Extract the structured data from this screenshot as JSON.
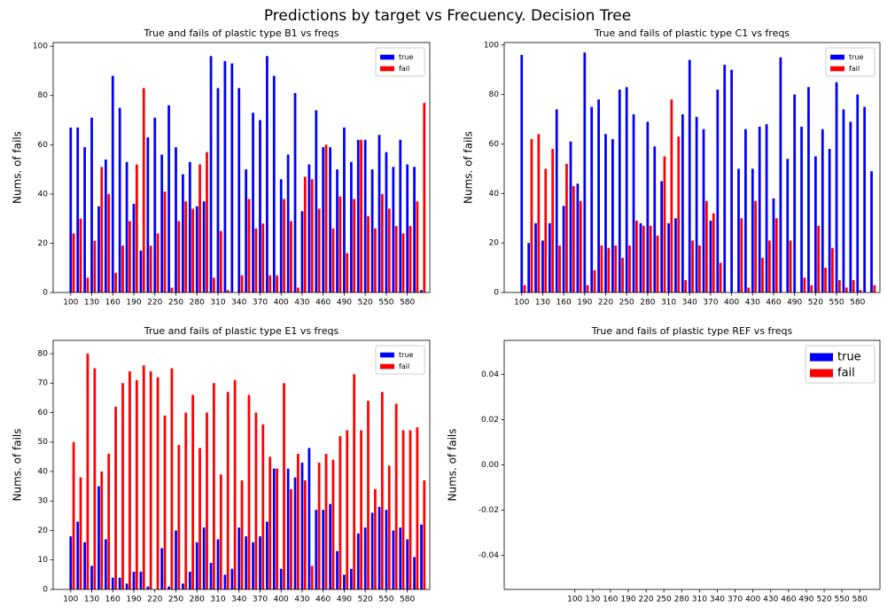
{
  "figure_title": "Predictions by target vs Frecuency. Decision Tree",
  "chart_data": [
    {
      "type": "bar",
      "title": "True and fails of plastic type B1 vs freqs",
      "ylabel": "Nums. of fails",
      "legend": "upper right",
      "x": [
        100,
        110,
        120,
        130,
        140,
        150,
        160,
        170,
        180,
        190,
        200,
        210,
        220,
        230,
        240,
        250,
        260,
        270,
        280,
        290,
        300,
        310,
        320,
        330,
        340,
        350,
        360,
        370,
        380,
        390,
        400,
        410,
        420,
        430,
        440,
        450,
        460,
        470,
        480,
        490,
        500,
        510,
        520,
        530,
        540,
        550,
        560,
        570,
        580,
        590,
        600
      ],
      "series": [
        {
          "name": "true",
          "color": "#0000ff",
          "values": [
            67,
            67,
            59,
            71,
            35,
            54,
            88,
            75,
            53,
            36,
            17,
            63,
            71,
            56,
            76,
            59,
            48,
            53,
            35,
            37,
            96,
            83,
            94,
            93,
            83,
            50,
            73,
            70,
            96,
            88,
            46,
            56,
            81,
            33,
            52,
            74,
            59,
            59,
            50,
            67,
            53,
            62,
            62,
            50,
            64,
            57,
            51,
            62,
            52,
            51,
            1
          ]
        },
        {
          "name": "fail",
          "color": "#ff0000",
          "values": [
            24,
            30,
            6,
            21,
            51,
            40,
            8,
            19,
            29,
            52,
            83,
            19,
            24,
            41,
            2,
            29,
            37,
            34,
            52,
            57,
            6,
            25,
            1,
            0,
            7,
            38,
            26,
            28,
            7,
            7,
            38,
            29,
            2,
            47,
            46,
            34,
            60,
            26,
            39,
            16,
            38,
            62,
            31,
            26,
            40,
            34,
            27,
            24,
            27,
            37,
            77
          ]
        }
      ],
      "xlim": [
        75,
        612
      ],
      "ylim": [
        0,
        101.5
      ],
      "xticks": [
        100,
        130,
        160,
        190,
        220,
        250,
        280,
        310,
        340,
        370,
        400,
        430,
        460,
        490,
        520,
        550,
        580
      ],
      "yticks": [
        0,
        20,
        40,
        60,
        80,
        100
      ]
    },
    {
      "type": "bar",
      "title": "True and fails of plastic type C1 vs freqs",
      "ylabel": "Nums. of fails",
      "legend": "upper right",
      "x": [
        100,
        110,
        120,
        130,
        140,
        150,
        160,
        170,
        180,
        190,
        200,
        210,
        220,
        230,
        240,
        250,
        260,
        270,
        280,
        290,
        300,
        310,
        320,
        330,
        340,
        350,
        360,
        370,
        380,
        390,
        400,
        410,
        420,
        430,
        440,
        450,
        460,
        470,
        480,
        490,
        500,
        510,
        520,
        530,
        540,
        550,
        560,
        570,
        580,
        590,
        600
      ],
      "series": [
        {
          "name": "true",
          "color": "#0000ff",
          "values": [
            96,
            20,
            28,
            21,
            28,
            74,
            35,
            61,
            44,
            97,
            75,
            78,
            64,
            62,
            82,
            83,
            72,
            28,
            69,
            59,
            45,
            28,
            30,
            72,
            94,
            71,
            66,
            29,
            82,
            92,
            90,
            50,
            66,
            50,
            67,
            68,
            38,
            95,
            54,
            80,
            67,
            83,
            55,
            66,
            58,
            85,
            74,
            69,
            80,
            75,
            49
          ]
        },
        {
          "name": "fail",
          "color": "#ff0000",
          "values": [
            3,
            62,
            64,
            50,
            58,
            19,
            52,
            43,
            37,
            3,
            9,
            19,
            18,
            19,
            14,
            19,
            29,
            27,
            27,
            23,
            55,
            78,
            63,
            5,
            21,
            19,
            37,
            32,
            12,
            0,
            0,
            30,
            2,
            37,
            14,
            21,
            30,
            0,
            21,
            0,
            6,
            3,
            27,
            10,
            18,
            5,
            2,
            5,
            1,
            0,
            3
          ]
        }
      ],
      "xlim": [
        75,
        612
      ],
      "ylim": [
        0,
        101
      ],
      "xticks": [
        100,
        130,
        160,
        190,
        220,
        250,
        280,
        310,
        340,
        370,
        400,
        430,
        460,
        490,
        520,
        550,
        580
      ],
      "yticks": [
        0,
        20,
        40,
        60,
        80,
        100
      ]
    },
    {
      "type": "bar",
      "title": "True and fails of plastic type E1 vs freqs",
      "ylabel": "Nums. of fails",
      "legend": "upper right",
      "x": [
        100,
        110,
        120,
        130,
        140,
        150,
        160,
        170,
        180,
        190,
        200,
        210,
        220,
        230,
        240,
        250,
        260,
        270,
        280,
        290,
        300,
        310,
        320,
        330,
        340,
        350,
        360,
        370,
        380,
        390,
        400,
        410,
        420,
        430,
        440,
        450,
        460,
        470,
        480,
        490,
        500,
        510,
        520,
        530,
        540,
        550,
        560,
        570,
        580,
        590,
        600
      ],
      "series": [
        {
          "name": "true",
          "color": "#0000ff",
          "values": [
            18,
            23,
            16,
            8,
            35,
            17,
            4,
            4,
            2,
            6,
            6,
            1,
            0,
            14,
            1,
            20,
            2,
            6,
            16,
            21,
            9,
            17,
            5,
            7,
            21,
            18,
            16,
            18,
            23,
            41,
            7,
            41,
            38,
            43,
            48,
            27,
            27,
            29,
            13,
            5,
            7,
            19,
            21,
            26,
            28,
            27,
            20,
            21,
            17,
            11,
            22
          ]
        },
        {
          "name": "fail",
          "color": "#ff0000",
          "values": [
            50,
            38,
            80,
            75,
            40,
            46,
            62,
            70,
            74,
            71,
            76,
            74,
            72,
            59,
            75,
            49,
            60,
            66,
            48,
            60,
            70,
            39,
            67,
            71,
            37,
            66,
            60,
            56,
            45,
            41,
            70,
            34,
            46,
            37,
            8,
            43,
            46,
            44,
            52,
            54,
            73,
            54,
            64,
            34,
            67,
            42,
            63,
            54,
            54,
            55,
            37
          ]
        }
      ],
      "xlim": [
        75,
        612
      ],
      "ylim": [
        0,
        84.5
      ],
      "xticks": [
        100,
        130,
        160,
        190,
        220,
        250,
        280,
        310,
        340,
        370,
        400,
        430,
        460,
        490,
        520,
        550,
        580
      ],
      "yticks": [
        0,
        10,
        20,
        30,
        40,
        50,
        60,
        70,
        80
      ]
    },
    {
      "type": "bar",
      "title": "True and fails of plastic type REF vs freqs",
      "ylabel": "Nums. of fails",
      "legend": "upper right",
      "x": [],
      "series": [
        {
          "name": "true",
          "color": "#0000ff",
          "values": []
        },
        {
          "name": "fail",
          "color": "#ff0000",
          "values": []
        }
      ],
      "xlim": [
        -19,
        614
      ],
      "ylim": [
        -0.055,
        0.055
      ],
      "xticks": [
        100,
        130,
        160,
        190,
        220,
        250,
        280,
        310,
        340,
        370,
        400,
        430,
        460,
        490,
        520,
        550,
        580
      ],
      "yticks": [
        -0.04,
        -0.02,
        {
          "value": 0,
          "label": "0.00"
        },
        0.02,
        0.04
      ]
    }
  ]
}
